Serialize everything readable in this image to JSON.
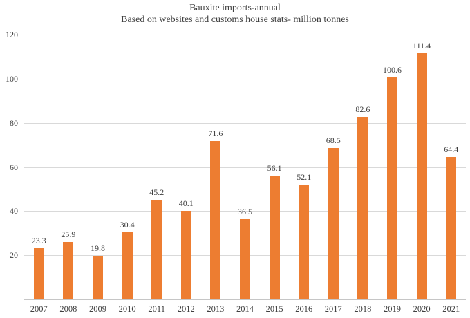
{
  "chart_data": {
    "type": "bar",
    "title": "Bauxite imports-annual",
    "subtitle": "Based on websites and customs house stats- million tonnes",
    "categories": [
      "2007",
      "2008",
      "2009",
      "2010",
      "2011",
      "2012",
      "2013",
      "2014",
      "2015",
      "2016",
      "2017",
      "2018",
      "2019",
      "2020",
      "2021"
    ],
    "values": [
      23.3,
      25.9,
      19.8,
      30.4,
      45.2,
      40.1,
      71.6,
      36.5,
      56.1,
      52.1,
      68.5,
      82.6,
      100.6,
      111.4,
      64.4
    ],
    "value_labels": [
      "23.3",
      "25.9",
      "19.8",
      "30.4",
      "45.2",
      "40.1",
      "71.6",
      "36.5",
      "56.1",
      "52.1",
      "68.5",
      "82.6",
      "100.6",
      "111.4",
      "64.4"
    ],
    "xlabel": "",
    "ylabel": "",
    "ylim": [
      0,
      120
    ],
    "yticks": [
      20,
      40,
      60,
      80,
      100,
      120
    ],
    "grid": true,
    "legend": false,
    "data_labels": true,
    "bar_color": "#ED7D31",
    "text_color": "#404040",
    "gridline_color": "#D9D9D9"
  }
}
